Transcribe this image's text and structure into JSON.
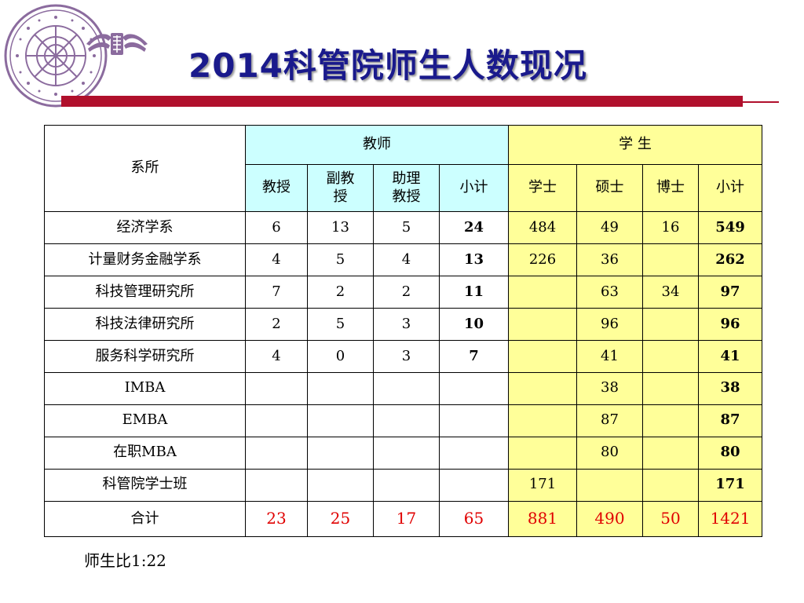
{
  "title": "2014科管院师生人数现况",
  "logo": {
    "seal_text": "大學 · TSING HUA UNIVERSITY",
    "emblem_name": "tsinghua-emblem"
  },
  "table": {
    "row_header": "系所",
    "group_teachers": "教师",
    "group_students": "学 生",
    "teacher_cols": [
      "教授",
      "副教授",
      "助理教授",
      "小计"
    ],
    "student_cols": [
      "学士",
      "硕士",
      "博士",
      "小计"
    ],
    "rows": [
      {
        "dept": "经济学系",
        "t": [
          "6",
          "13",
          "5",
          "24"
        ],
        "s": [
          "484",
          "49",
          "16",
          "549"
        ]
      },
      {
        "dept": "计量财务金融学系",
        "t": [
          "4",
          "5",
          "4",
          "13"
        ],
        "s": [
          "226",
          "36",
          "",
          "262"
        ]
      },
      {
        "dept": "科技管理研究所",
        "t": [
          "7",
          "2",
          "2",
          "11"
        ],
        "s": [
          "",
          "63",
          "34",
          "97"
        ]
      },
      {
        "dept": "科技法律研究所",
        "t": [
          "2",
          "5",
          "3",
          "10"
        ],
        "s": [
          "",
          "96",
          "",
          "96"
        ]
      },
      {
        "dept": "服务科学研究所",
        "t": [
          "4",
          "0",
          "3",
          "7"
        ],
        "s": [
          "",
          "41",
          "",
          "41"
        ]
      },
      {
        "dept": "IMBA",
        "t": [
          "",
          "",
          "",
          ""
        ],
        "s": [
          "",
          "38",
          "",
          "38"
        ]
      },
      {
        "dept": "EMBA",
        "t": [
          "",
          "",
          "",
          ""
        ],
        "s": [
          "",
          "87",
          "",
          "87"
        ]
      },
      {
        "dept": "在职MBA",
        "t": [
          "",
          "",
          "",
          ""
        ],
        "s": [
          "",
          "80",
          "",
          "80"
        ]
      },
      {
        "dept": "科管院学士班",
        "t": [
          "",
          "",
          "",
          ""
        ],
        "s": [
          "171",
          "",
          "",
          "171"
        ]
      }
    ],
    "total": {
      "label": "合计",
      "t": [
        "23",
        "25",
        "17",
        "65"
      ],
      "s": [
        "881",
        "490",
        "50",
        "1421"
      ]
    }
  },
  "ratio_text": "师生比1:22",
  "colors": {
    "title": "#1a1a8c",
    "bar": "#b0102c",
    "teacher_header_bg": "#ccffff",
    "student_bg": "#ffff99",
    "total_text": "#e00000",
    "logo": "#8b6b9e"
  }
}
